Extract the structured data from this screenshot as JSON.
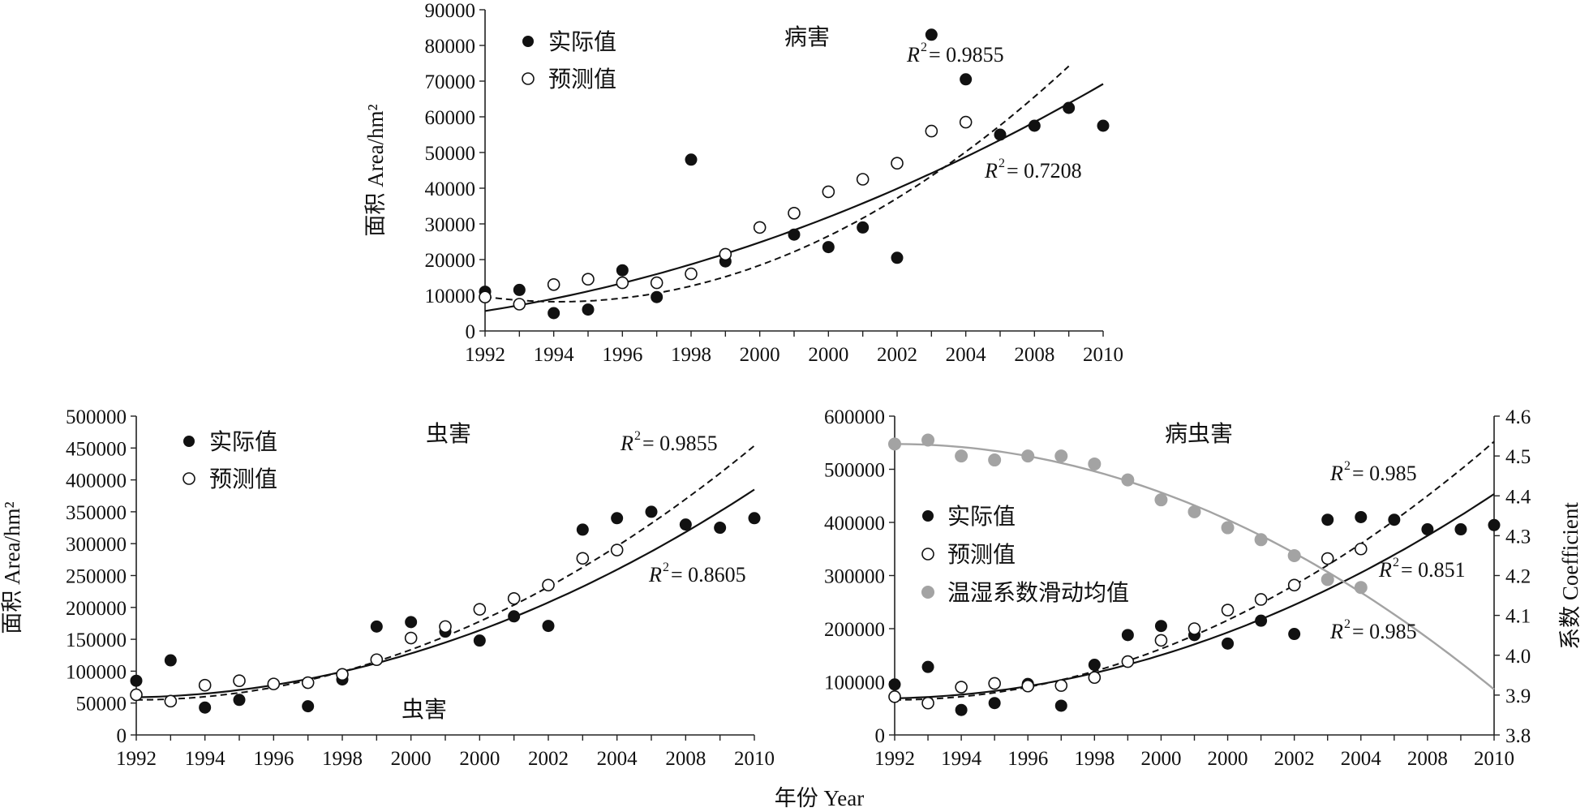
{
  "figure": {
    "xlabel": "年份 Year"
  },
  "chart_data": [
    {
      "id": "disease",
      "type": "scatter",
      "title": "病害",
      "categories": [
        "1992",
        "1993",
        "1994",
        "1995",
        "1996",
        "1997",
        "1998",
        "1999",
        "2000",
        "2001",
        "2000",
        "2001",
        "2002",
        "2003",
        "2004",
        "2005",
        "2008",
        "2009",
        "2010"
      ],
      "x_ticks": [
        "1992",
        "1994",
        "1996",
        "1998",
        "2000",
        "2000",
        "2002",
        "2004",
        "2008",
        "2010"
      ],
      "ylabel": "面积 Area/hm²",
      "ylim": [
        0,
        90000
      ],
      "y_ticks": [
        0,
        10000,
        20000,
        30000,
        40000,
        50000,
        60000,
        70000,
        80000,
        90000
      ],
      "legend": {
        "placement": "top-left",
        "actual": "实际值",
        "predicted": "预测值"
      },
      "series": [
        {
          "name": "实际值",
          "marker": "filled",
          "values": [
            11000,
            11500,
            5000,
            6000,
            17000,
            9500,
            48000,
            19500,
            29000,
            27000,
            23500,
            29000,
            20500,
            83000,
            70500,
            55000,
            57500,
            62500,
            57500
          ]
        },
        {
          "name": "预测值",
          "marker": "open",
          "values": [
            9500,
            7500,
            13000,
            14500,
            13500,
            13500,
            16000,
            21500,
            29000,
            33000,
            39000,
            42500,
            47000,
            56000,
            58500,
            null,
            null,
            null,
            null
          ]
        }
      ],
      "trendlines": [
        {
          "style": "solid",
          "r2_label": "= 0.7208",
          "a": 5600,
          "b": 1500,
          "c": 113
        },
        {
          "style": "dashed",
          "r2_label": "= 0.9855",
          "a": 9600,
          "b": -1300,
          "c": 300,
          "end": 17
        }
      ]
    },
    {
      "id": "insect",
      "type": "scatter",
      "title": "虫害",
      "annotation": "虫害",
      "categories": [
        "1992",
        "1993",
        "1994",
        "1995",
        "1996",
        "1997",
        "1998",
        "1999",
        "2000",
        "2001",
        "2000",
        "2001",
        "2002",
        "2003",
        "2004",
        "2005",
        "2008",
        "2009",
        "2010"
      ],
      "x_ticks": [
        "1992",
        "1994",
        "1996",
        "1998",
        "2000",
        "2000",
        "2002",
        "2004",
        "2008",
        "2010"
      ],
      "ylabel": "面积 Area/hm²",
      "ylim": [
        0,
        500000
      ],
      "y_ticks": [
        0,
        50000,
        100000,
        150000,
        200000,
        250000,
        300000,
        350000,
        400000,
        450000,
        500000
      ],
      "legend": {
        "placement": "top-left",
        "actual": "实际值",
        "predicted": "预测值"
      },
      "series": [
        {
          "name": "实际值",
          "marker": "filled",
          "values": [
            85000,
            117000,
            43000,
            55000,
            80000,
            45000,
            87000,
            170000,
            177000,
            162000,
            148000,
            186000,
            171000,
            322000,
            340000,
            350000,
            330000,
            325000,
            340000
          ]
        },
        {
          "name": "预测值",
          "marker": "open",
          "values": [
            63000,
            53000,
            78000,
            85000,
            80000,
            82000,
            95000,
            118000,
            152000,
            170000,
            197000,
            214000,
            235000,
            277000,
            290000,
            null,
            null,
            null,
            null
          ]
        }
      ],
      "trendlines": [
        {
          "style": "solid",
          "r2_label": "= 0.8605",
          "a": 59000,
          "b": 1000,
          "c": 950
        },
        {
          "style": "dashed",
          "r2_label": "= 0.9855",
          "a": 55000,
          "b": 0,
          "c": 1230
        }
      ]
    },
    {
      "id": "disease_insect",
      "type": "scatter",
      "title": "病虫害",
      "categories": [
        "1992",
        "1993",
        "1994",
        "1995",
        "1996",
        "1997",
        "1998",
        "1999",
        "2000",
        "2001",
        "2000",
        "2001",
        "2002",
        "2003",
        "2004",
        "2005",
        "2008",
        "2009",
        "2010"
      ],
      "x_ticks": [
        "1992",
        "1994",
        "1996",
        "1998",
        "2000",
        "2000",
        "2002",
        "2004",
        "2008",
        "2010"
      ],
      "ylabel": "",
      "ylim": [
        0,
        600000
      ],
      "y_ticks": [
        0,
        100000,
        200000,
        300000,
        400000,
        500000,
        600000
      ],
      "y2label": "系数 Coefficient",
      "y2lim": [
        3.8,
        4.6
      ],
      "y2_ticks": [
        "3.8",
        "3.9",
        "4.0",
        "4.1",
        "4.2",
        "4.3",
        "4.4",
        "4.5",
        "4.6"
      ],
      "legend": {
        "placement": "middle-left",
        "actual": "实际值",
        "predicted": "预测值",
        "coefficient": "温湿系数滑动均值"
      },
      "series": [
        {
          "name": "实际值",
          "marker": "filled",
          "values": [
            95000,
            128000,
            47000,
            60000,
            96000,
            55000,
            132000,
            188000,
            205000,
            188000,
            172000,
            215000,
            190000,
            405000,
            410000,
            405000,
            387000,
            387000,
            395000
          ]
        },
        {
          "name": "预测值",
          "marker": "open",
          "values": [
            72000,
            60000,
            90000,
            97000,
            92000,
            93000,
            108000,
            138000,
            178000,
            200000,
            235000,
            255000,
            282000,
            332000,
            350000,
            null,
            null,
            null,
            null
          ]
        },
        {
          "name": "温湿系数滑动均值",
          "marker": "gray",
          "axis": "y2",
          "values": [
            4.53,
            4.54,
            4.5,
            4.49,
            4.5,
            4.5,
            4.48,
            4.44,
            4.39,
            4.36,
            4.32,
            4.29,
            4.25,
            4.19,
            4.17,
            null,
            null,
            null,
            null
          ]
        }
      ],
      "trendlines": [
        {
          "style": "solid",
          "r2_label": "= 0.851",
          "a": 69000,
          "b": 1200,
          "c": 1120
        },
        {
          "style": "dashed",
          "r2_label": "= 0.985",
          "a": 66000,
          "b": 0,
          "c": 1500
        },
        {
          "style": "gray",
          "axis": "y2",
          "a": 4.53,
          "b": 0,
          "c": -0.0019
        }
      ],
      "extra_r2_label": "= 0.985"
    }
  ]
}
